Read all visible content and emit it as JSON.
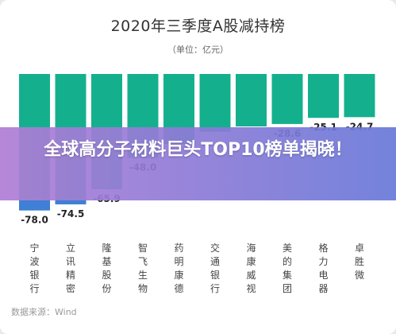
{
  "chart_data": {
    "type": "bar",
    "title": "2020年三季度A股减持榜",
    "subtitle": "（单位：亿元）",
    "categories": [
      "宁波银行",
      "立讯精密",
      "隆基股份",
      "智飞生物",
      "药明康德",
      "交通银行",
      "海康威视",
      "美的集团",
      "格力电器",
      "卓胜微"
    ],
    "values": [
      -78.0,
      -74.5,
      -65.9,
      -48.0,
      -40.0,
      -33.0,
      -30.0,
      -28.6,
      -25.1,
      -24.7
    ],
    "value_labels": [
      "-78.0",
      "-74.5",
      "-65.9",
      "-48.0",
      "",
      "",
      "",
      "-28.6",
      "-25.1",
      "-24.7"
    ],
    "ylim": [
      -85,
      0
    ],
    "grid": false,
    "colors": {
      "bar": "#14b08e",
      "bar_below_zero_axis": "#3f7fd6"
    }
  },
  "overlay": {
    "headline": "全球高分子材料巨头TOP10榜单揭晓！"
  },
  "source_text": "数据来源：Wind"
}
